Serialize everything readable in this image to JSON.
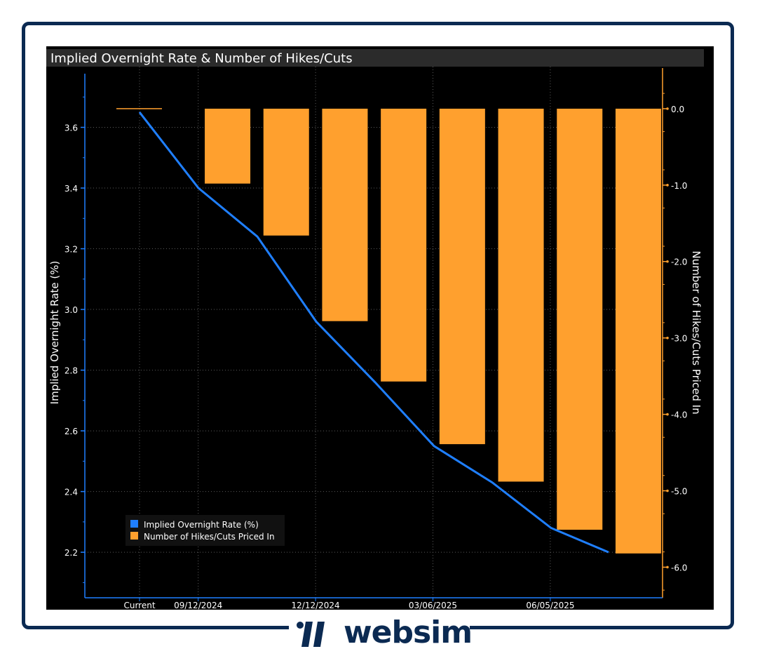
{
  "chart_data": {
    "type": "bar",
    "title": "Implied Overnight Rate & Number of Hikes/Cuts",
    "categories": [
      "Current",
      "",
      "",
      "",
      "",
      "",
      "",
      "",
      ""
    ],
    "x_tick_labels": [
      "Current",
      "09/12/2024",
      "12/12/2024",
      "03/06/2025",
      "06/05/2025"
    ],
    "series": [
      {
        "name": "Implied Overnight Rate (%)",
        "type": "line",
        "axis": "left",
        "color": "#1f7fff",
        "values": [
          3.65,
          3.4,
          3.24,
          2.96,
          2.76,
          2.55,
          2.43,
          2.28,
          2.2
        ]
      },
      {
        "name": "Number of Hikes/Cuts Priced In",
        "type": "bar",
        "axis": "right",
        "color": "#ffa02e",
        "values": [
          0,
          -0.98,
          -1.66,
          -2.78,
          -3.57,
          -4.39,
          -4.88,
          -5.51,
          -5.82
        ]
      }
    ],
    "ylabel": "Implied Overnight Rate (%)",
    "ylabel_right": "Number of Hikes/Cuts Priced In",
    "ylim": [
      2.05,
      3.8
    ],
    "ylim_right": [
      -6.4,
      0.55
    ],
    "yticks": [
      "3.6",
      "3.4",
      "3.2",
      "3.0",
      "2.8",
      "2.6",
      "2.4",
      "2.2"
    ],
    "yticks_right": [
      "0.0",
      "-1.0",
      "-2.0",
      "-3.0",
      "-4.0",
      "-5.0",
      "-6.0"
    ],
    "grid": true,
    "legend_position": "bottom-left",
    "legend": [
      "Implied Overnight Rate (%)",
      "Number of Hikes/Cuts Priced In"
    ]
  },
  "brand": {
    "name": "websim",
    "color": "#0b2a52"
  }
}
